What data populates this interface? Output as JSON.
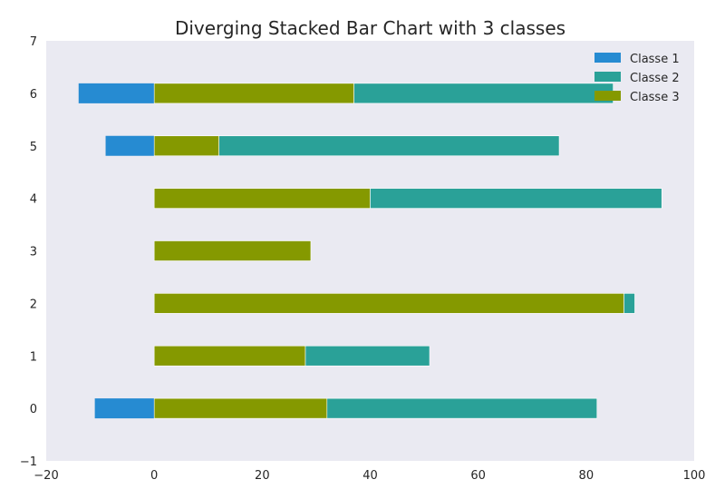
{
  "chart_data": {
    "type": "bar",
    "orientation": "horizontal",
    "stacking": "diverging",
    "title": "Diverging Stacked Bar Chart with 3 classes",
    "xlabel": "",
    "ylabel": "",
    "xlim": [
      -20,
      100
    ],
    "ylim": [
      -1,
      7
    ],
    "xticks": [
      -20,
      0,
      20,
      40,
      60,
      80,
      100
    ],
    "yticks": [
      -1,
      0,
      1,
      2,
      3,
      4,
      5,
      6,
      7
    ],
    "xtick_labels": [
      "−20",
      "0",
      "20",
      "40",
      "60",
      "80",
      "100"
    ],
    "ytick_labels": [
      "−1",
      "0",
      "1",
      "2",
      "3",
      "4",
      "5",
      "6",
      "7"
    ],
    "categories": [
      0,
      1,
      2,
      3,
      4,
      5,
      6
    ],
    "grid": false,
    "background": "#eaeaf2",
    "legend_position": "top-right",
    "series": [
      {
        "name": "Classe 1",
        "color": "#268bd2",
        "direction": "negative",
        "values": [
          11,
          0,
          0,
          0,
          0,
          9,
          14
        ]
      },
      {
        "name": "Classe 2",
        "color": "#2aa198",
        "direction": "positive",
        "values": [
          50,
          23,
          2,
          0,
          54,
          63,
          48
        ]
      },
      {
        "name": "Classe 3",
        "color": "#859900",
        "direction": "positive",
        "values": [
          32,
          28,
          87,
          29,
          40,
          12,
          37
        ]
      }
    ],
    "stack_order_positive": [
      "Classe 3",
      "Classe 2"
    ]
  }
}
